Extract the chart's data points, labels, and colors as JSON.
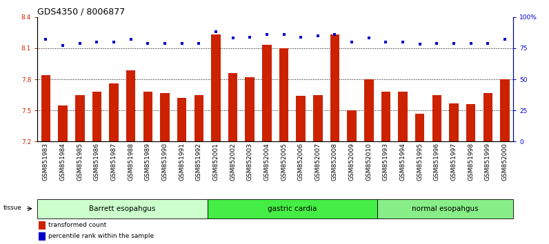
{
  "title": "GDS4350 / 8006877",
  "samples": [
    "GSM851983",
    "GSM851984",
    "GSM851985",
    "GSM851986",
    "GSM851987",
    "GSM851988",
    "GSM851989",
    "GSM851990",
    "GSM851991",
    "GSM851992",
    "GSM852001",
    "GSM852002",
    "GSM852003",
    "GSM852004",
    "GSM852005",
    "GSM852006",
    "GSM852007",
    "GSM852008",
    "GSM852009",
    "GSM852010",
    "GSM851993",
    "GSM851994",
    "GSM851995",
    "GSM851996",
    "GSM851997",
    "GSM851998",
    "GSM851999",
    "GSM852000"
  ],
  "red_bars": [
    7.84,
    7.55,
    7.65,
    7.68,
    7.76,
    7.89,
    7.68,
    7.67,
    7.62,
    7.65,
    8.23,
    7.86,
    7.82,
    8.13,
    8.1,
    7.64,
    7.65,
    8.23,
    7.5,
    7.8,
    7.68,
    7.68,
    7.47,
    7.65,
    7.57,
    7.56,
    7.67,
    7.8
  ],
  "blue_dots": [
    82,
    77,
    79,
    80,
    80,
    82,
    79,
    79,
    79,
    79,
    88,
    83,
    84,
    86,
    86,
    84,
    85,
    86,
    80,
    83,
    80,
    80,
    78,
    79,
    79,
    79,
    79,
    82
  ],
  "groups": [
    {
      "label": "Barrett esopahgus",
      "start": 0,
      "end": 10,
      "color": "#ccffcc"
    },
    {
      "label": "gastric cardia",
      "start": 10,
      "end": 20,
      "color": "#44ee44"
    },
    {
      "label": "normal esopahgus",
      "start": 20,
      "end": 28,
      "color": "#88ee88"
    }
  ],
  "ylim_left": [
    7.2,
    8.4
  ],
  "yticks_left": [
    7.2,
    7.5,
    7.8,
    8.1,
    8.4
  ],
  "yticks_right": [
    0,
    25,
    50,
    75,
    100
  ],
  "ytick_labels_right": [
    "0",
    "25",
    "50",
    "75",
    "100%"
  ],
  "hgrid_vals": [
    7.5,
    7.8,
    8.1
  ],
  "bar_color": "#cc2200",
  "dot_color": "#0000cc",
  "axis_color_left": "#cc2200",
  "axis_color_right": "#0000cc",
  "title_fontsize": 9,
  "tick_fontsize": 6.5,
  "group_fontsize": 7.5
}
